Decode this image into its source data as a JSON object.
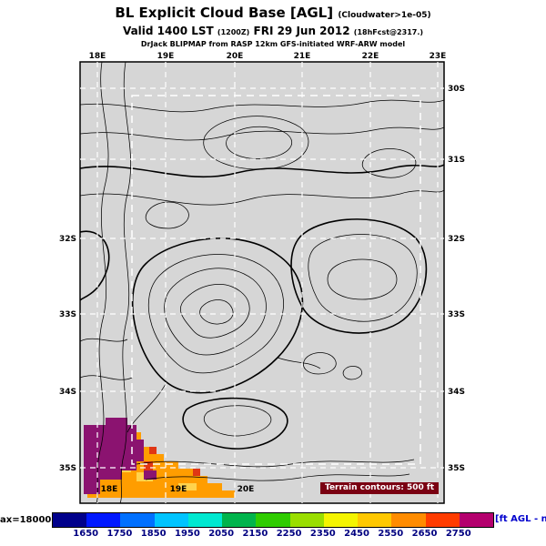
{
  "header": {
    "title": "BL Explicit Cloud Base [AGL]",
    "title_note": "(Cloudwater>1e-05)",
    "valid_line": {
      "main1": "Valid 1400 LST",
      "note1": "(1200Z)",
      "main2": "FRI 29 Jun 2012",
      "note2": "(18hFcst@2317.)"
    },
    "credit": "DrJack BLIPMAP from RASP 12km GFS-initiated WRF-ARW model"
  },
  "map": {
    "lon_top": [
      "18E",
      "19E",
      "20E",
      "21E",
      "22E",
      "23E"
    ],
    "lon_bottom": [
      "18E",
      "19E",
      "20E"
    ],
    "lat_left": [
      "32S",
      "33S",
      "34S",
      "35S"
    ],
    "lat_right": [
      "30S",
      "31S",
      "32S",
      "33S",
      "34S",
      "35S"
    ],
    "terrain_note": "Terrain contours: 500 ft",
    "background_color": "#d6d6d6",
    "fill_colors": {
      "purple": "#8b1370",
      "red": "#e03614",
      "orange": "#ff9d00",
      "yellow": "#ffd34d"
    }
  },
  "colorbar": {
    "label_left": "ax=18000]",
    "label_right": "[ft AGL - n",
    "ticks": [
      "1650",
      "1750",
      "1850",
      "1950",
      "2050",
      "2150",
      "2250",
      "2350",
      "2450",
      "2550",
      "2650",
      "2750"
    ],
    "segment_colors": [
      "#00008b",
      "#0018ff",
      "#0070ff",
      "#00c4ff",
      "#00e8d0",
      "#00b44c",
      "#2fcc00",
      "#9ade00",
      "#f4f400",
      "#ffc800",
      "#ff8c00",
      "#ff3c00",
      "#b4006e"
    ]
  }
}
